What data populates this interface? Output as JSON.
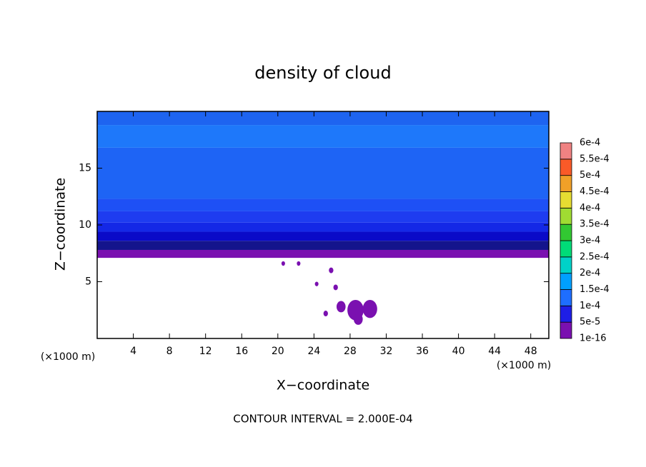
{
  "chart_data": {
    "type": "contour",
    "title": "density of cloud",
    "xlabel": "X−coordinate",
    "ylabel": "Z−coordinate",
    "x_unit_label": "(×1000 m)",
    "y_unit_label": "(×1000 m)",
    "footer": "CONTOUR INTERVAL = 2.000E-04",
    "xlim": [
      0,
      50
    ],
    "ylim": [
      0,
      20
    ],
    "xticks": [
      4,
      8,
      12,
      16,
      20,
      24,
      28,
      32,
      36,
      40,
      44,
      48
    ],
    "yticks": [
      5,
      10,
      15
    ],
    "profile": {
      "z": [
        7.1,
        7.8,
        8.6,
        9.4,
        10.2,
        11.2,
        12.3,
        16.8,
        18.8,
        20
      ],
      "values": [
        2e-05,
        6e-05,
        7.5e-05,
        8.5e-05,
        9.5e-05,
        0.000105,
        0.00012,
        0.000135,
        0.00012
      ],
      "colors": [
        "#7a10b0",
        "#14148c",
        "#0a0ac8",
        "#1428e6",
        "#1e3cf0",
        "#1e50f5",
        "#1e64f5",
        "#1e78fa",
        "#1e64f0"
      ]
    },
    "cells": {
      "x": [
        28.6,
        30.2,
        27.0,
        25.3,
        28.9,
        24.3,
        26.4,
        25.9,
        20.6,
        22.3
      ],
      "z": [
        2.5,
        2.6,
        2.8,
        2.2,
        1.7,
        4.8,
        4.5,
        6.0,
        6.6,
        6.6
      ],
      "size": [
        0.9,
        0.8,
        0.5,
        0.25,
        0.5,
        0.2,
        0.25,
        0.25,
        0.2,
        0.2
      ],
      "color": "#7a10b0"
    },
    "levels": [
      {
        "value": 1e-16,
        "label": "1e-16"
      },
      {
        "value": 5e-05,
        "label": "5e-5"
      },
      {
        "value": 0.0001,
        "label": "1e-4"
      },
      {
        "value": 0.00015,
        "label": "1.5e-4"
      },
      {
        "value": 0.0002,
        "label": "2e-4"
      },
      {
        "value": 0.00025,
        "label": "2.5e-4"
      },
      {
        "value": 0.0003,
        "label": "3e-4"
      },
      {
        "value": 0.00035,
        "label": "3.5e-4"
      },
      {
        "value": 0.0004,
        "label": "4e-4"
      },
      {
        "value": 0.00045,
        "label": "4.5e-4"
      },
      {
        "value": 0.0005,
        "label": "5e-4"
      },
      {
        "value": 0.00055,
        "label": "5.5e-4"
      },
      {
        "value": 0.0006,
        "label": "6e-4"
      }
    ],
    "level_colors": [
      "#7a10b0",
      "#1e1ee6",
      "#1e6eff",
      "#00a0ff",
      "#00d2c8",
      "#00dc78",
      "#32c832",
      "#a0dc32",
      "#e6dc32",
      "#f0a028",
      "#fa5a28",
      "#f08282"
    ]
  }
}
